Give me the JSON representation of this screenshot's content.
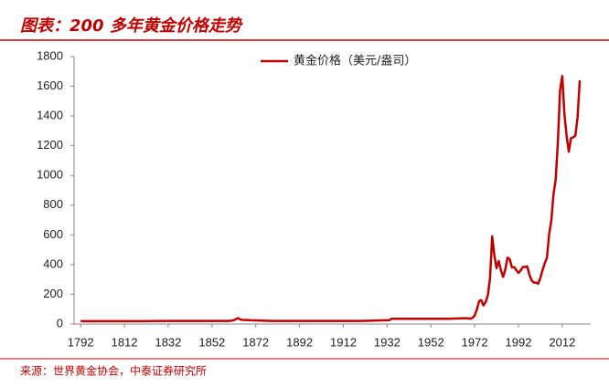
{
  "chart_data": {
    "type": "line",
    "title": "图表：200 多年黄金价格走势",
    "source": "来源：世界黄金协会，中泰证券研究所",
    "legend_position": "top",
    "x": [
      1792,
      1800,
      1810,
      1820,
      1830,
      1840,
      1850,
      1860,
      1862,
      1864,
      1865,
      1866,
      1868,
      1870,
      1875,
      1879,
      1900,
      1920,
      1933,
      1934,
      1940,
      1950,
      1960,
      1968,
      1970,
      1971,
      1972,
      1973,
      1974,
      1975,
      1976,
      1977,
      1978,
      1979,
      1980,
      1981,
      1982,
      1983,
      1984,
      1985,
      1986,
      1987,
      1988,
      1989,
      1990,
      1991,
      1992,
      1993,
      1994,
      1995,
      1996,
      1997,
      1998,
      1999,
      2000,
      2001,
      2002,
      2003,
      2004,
      2005,
      2006,
      2007,
      2008,
      2009,
      2010,
      2011,
      2012,
      2013,
      2014,
      2015,
      2016,
      2017,
      2018,
      2019,
      2020
    ],
    "series": [
      {
        "name": "黄金价格（美元/盎司）",
        "color": "#c00000",
        "values": [
          19.4,
          19.4,
          19.4,
          19.4,
          20.7,
          20.7,
          20.7,
          20.7,
          26,
          40,
          30,
          28,
          27,
          25,
          23,
          20.7,
          20.7,
          20.7,
          26,
          35,
          35,
          35,
          35,
          39,
          36,
          41,
          58,
          97,
          154,
          161,
          125,
          148,
          193,
          307,
          590,
          460,
          376,
          424,
          361,
          317,
          368,
          447,
          437,
          381,
          383,
          363,
          344,
          360,
          384,
          384,
          388,
          331,
          294,
          279,
          279,
          271,
          310,
          363,
          409,
          445,
          604,
          696,
          872,
          972,
          1225,
          1572,
          1669,
          1411,
          1266,
          1160,
          1251,
          1257,
          1268,
          1393,
          1640
        ]
      }
    ],
    "xlim": [
      1789,
      2025
    ],
    "xticks": [
      1792,
      1812,
      1832,
      1852,
      1872,
      1892,
      1912,
      1932,
      1952,
      1972,
      1992,
      2012
    ],
    "ylim": [
      0,
      1800
    ],
    "yticks": [
      0,
      200,
      400,
      600,
      800,
      1000,
      1200,
      1400,
      1600,
      1800
    ],
    "grid": false
  }
}
